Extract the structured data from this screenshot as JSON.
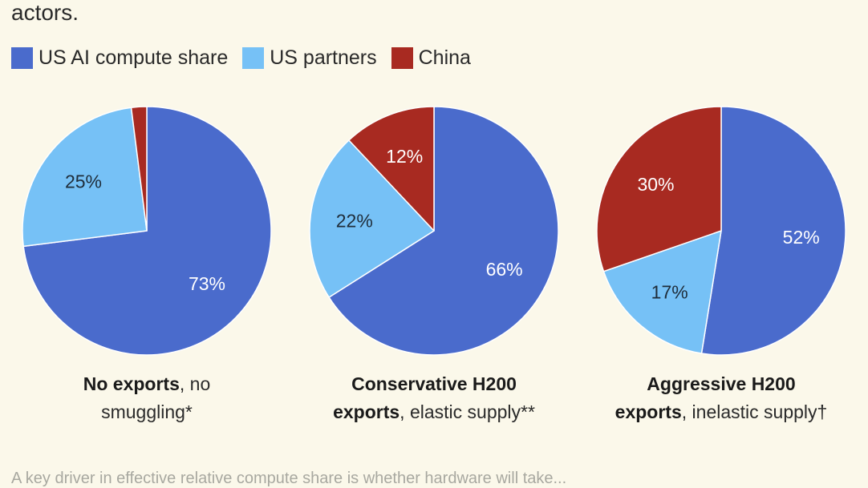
{
  "header": {
    "intro_tail": "actors."
  },
  "colors": {
    "us": "#4a6bcc",
    "partners": "#76c1f6",
    "china": "#a82a21",
    "background": "#fbf8ea"
  },
  "legend": {
    "items": [
      {
        "label": "US AI compute share",
        "color": "#4a6bcc"
      },
      {
        "label": "US partners",
        "color": "#76c1f6"
      },
      {
        "label": "China",
        "color": "#a82a21"
      }
    ]
  },
  "chart_data": [
    {
      "type": "pie",
      "title_bold": "No exports",
      "title_rest": ", no smuggling*",
      "categories": [
        "US AI compute share",
        "US partners",
        "China"
      ],
      "values": [
        73,
        25,
        2
      ],
      "labels": [
        "73%",
        "25%",
        ""
      ],
      "start": "12 o'clock",
      "direction": "clockwise"
    },
    {
      "type": "pie",
      "title_bold_line1": "Conservative H200",
      "title_bold_line2": "exports",
      "title_rest": ", elastic supply**",
      "categories": [
        "US AI compute share",
        "US partners",
        "China"
      ],
      "values": [
        66,
        22,
        12
      ],
      "labels": [
        "66%",
        "22%",
        "12%"
      ],
      "start": "12 o'clock",
      "direction": "clockwise"
    },
    {
      "type": "pie",
      "title_bold_line1": "Aggressive H200",
      "title_bold_line2": "exports",
      "title_rest": ", inelastic supply†",
      "categories": [
        "US AI compute share",
        "US partners",
        "China"
      ],
      "values": [
        52,
        17,
        30
      ],
      "labels": [
        "52%",
        "17%",
        "30%"
      ],
      "start": "12 o'clock",
      "direction": "clockwise"
    }
  ],
  "footer": {
    "note": "A key driver in effective relative compute share is whether hardware will take..."
  }
}
